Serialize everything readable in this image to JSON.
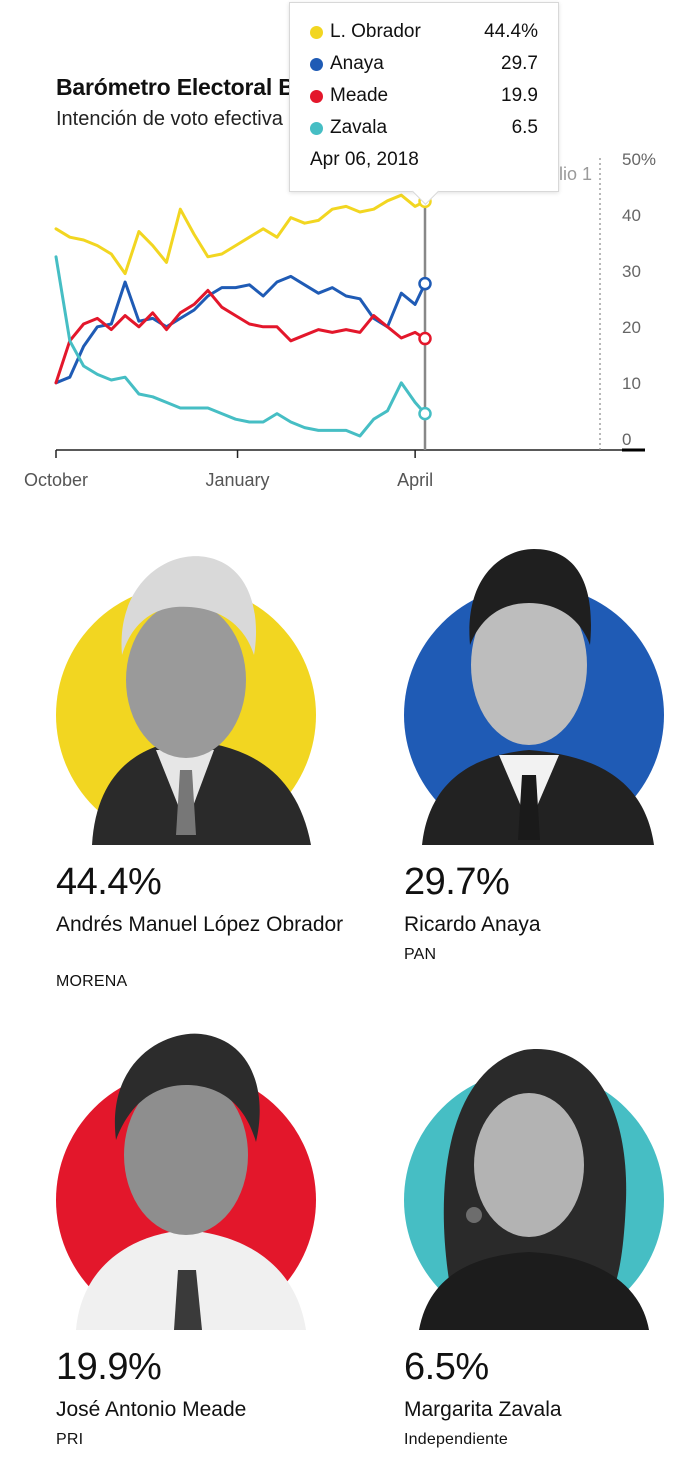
{
  "header": {
    "title": "Barómetro Electoral Bloomberg",
    "subtitle": "Intención de voto efectiva"
  },
  "chart_data": {
    "type": "line",
    "x": [
      "2017-10-01",
      "2017-10-08",
      "2017-10-15",
      "2017-10-22",
      "2017-10-29",
      "2017-11-05",
      "2017-11-12",
      "2017-11-19",
      "2017-11-26",
      "2017-12-03",
      "2017-12-10",
      "2017-12-17",
      "2017-12-24",
      "2017-12-31",
      "2018-01-07",
      "2018-01-14",
      "2018-01-21",
      "2018-01-28",
      "2018-02-04",
      "2018-02-11",
      "2018-02-18",
      "2018-02-25",
      "2018-03-04",
      "2018-03-11",
      "2018-03-18",
      "2018-03-25",
      "2018-04-01",
      "2018-04-06"
    ],
    "x_ticks": [
      "October",
      "January",
      "April"
    ],
    "y_ticks": [
      "0",
      "10",
      "20",
      "30",
      "40",
      "50%"
    ],
    "ylim": [
      0,
      50
    ],
    "grid": false,
    "vertical_marker_date": "2018-04-06",
    "election_marker": {
      "label": "Elección: julio 1",
      "date": "2018-07-01"
    },
    "series": [
      {
        "name": "L. Obrador",
        "color": "#f2d621",
        "values": [
          39.5,
          38.0,
          37.5,
          36.5,
          35.0,
          31.5,
          39.0,
          36.5,
          33.5,
          43.0,
          38.5,
          34.5,
          35.0,
          36.5,
          38.0,
          39.5,
          38.0,
          41.5,
          40.5,
          41.0,
          43.0,
          43.5,
          42.5,
          43.0,
          44.5,
          45.5,
          43.5,
          44.4
        ]
      },
      {
        "name": "Anaya",
        "color": "#1f5bb5",
        "values": [
          12.0,
          13.0,
          18.5,
          22.0,
          22.5,
          30.0,
          23.0,
          23.5,
          22.0,
          23.5,
          25.0,
          27.5,
          29.0,
          29.0,
          29.5,
          27.5,
          30.0,
          31.0,
          29.5,
          28.0,
          29.0,
          27.5,
          27.0,
          23.5,
          22.0,
          28.0,
          26.0,
          29.7
        ]
      },
      {
        "name": "Meade",
        "color": "#e3172b",
        "values": [
          12.0,
          19.5,
          22.5,
          23.5,
          21.5,
          24.0,
          22.0,
          24.5,
          21.5,
          24.5,
          26.0,
          28.5,
          25.5,
          24.0,
          22.5,
          22.0,
          22.0,
          19.5,
          20.5,
          21.5,
          21.0,
          21.5,
          21.0,
          24.0,
          22.0,
          20.0,
          21.0,
          19.9
        ]
      },
      {
        "name": "Zavala",
        "color": "#46bec4",
        "values": [
          34.5,
          19.5,
          15.0,
          13.5,
          12.5,
          13.0,
          10.0,
          9.5,
          8.5,
          7.5,
          7.5,
          7.5,
          6.5,
          5.5,
          5.0,
          5.0,
          6.5,
          5.0,
          4.0,
          3.5,
          3.5,
          3.5,
          2.5,
          5.5,
          7.0,
          12.0,
          8.5,
          6.5
        ]
      }
    ]
  },
  "tooltip": {
    "date": "Apr 06, 2018",
    "rows": [
      {
        "name": "L. Obrador",
        "value": "44.4%",
        "color": "#f2d621"
      },
      {
        "name": "Anaya",
        "value": "29.7",
        "color": "#1f5bb5"
      },
      {
        "name": "Meade",
        "value": "19.9",
        "color": "#e3172b"
      },
      {
        "name": "Zavala",
        "value": "6.5",
        "color": "#46bec4"
      }
    ]
  },
  "candidates": [
    {
      "pct": "44.4%",
      "name": "Andrés Manuel López Obrador",
      "party": "MORENA",
      "color": "#f2d621"
    },
    {
      "pct": "29.7%",
      "name": "Ricardo Anaya",
      "party": "PAN",
      "color": "#1f5bb5"
    },
    {
      "pct": "19.9%",
      "name": "José Antonio Meade",
      "party": "PRI",
      "color": "#e3172b"
    },
    {
      "pct": "6.5%",
      "name": "Margarita Zavala",
      "party": "Independiente",
      "color": "#46bec4"
    }
  ]
}
